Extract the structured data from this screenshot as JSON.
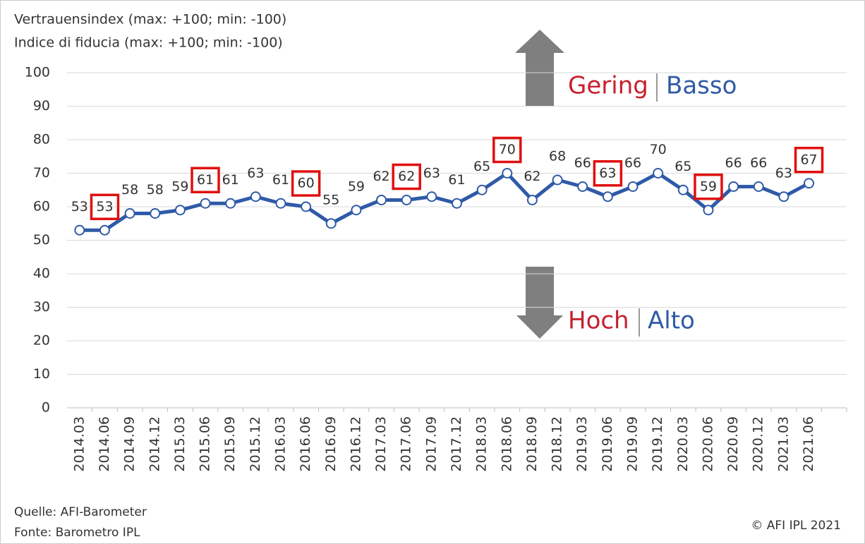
{
  "chart_data": {
    "type": "line",
    "title": "Vertrauensindex (max: +100; min: -100)",
    "subtitle": "Indice di fiducia (max: +100; min: -100)",
    "categories": [
      "2014.03",
      "2014.06",
      "2014.09",
      "2014.12",
      "2015.03",
      "2015.06",
      "2015.09",
      "2015.12",
      "2016.03",
      "2016.06",
      "2016.09",
      "2016.12",
      "2017.03",
      "2017.06",
      "2017.09",
      "2017.12",
      "2018.03",
      "2018.06",
      "2018.09",
      "2018.12",
      "2019.03",
      "2019.06",
      "2019.09",
      "2019.12",
      "2020.03",
      "2020.06",
      "2020.09",
      "2020.12",
      "2021.03",
      "2021.06",
      null
    ],
    "series": [
      {
        "name": null,
        "color": "#2f5aa8",
        "values": [
          53,
          53,
          58,
          58,
          59,
          61,
          61,
          63,
          61,
          60,
          55,
          59,
          62,
          62,
          63,
          61,
          65,
          70,
          62,
          68,
          66,
          63,
          66,
          70,
          65,
          59,
          66,
          66,
          63,
          67,
          null
        ]
      }
    ],
    "highlighted_indices": [
      1,
      5,
      9,
      13,
      17,
      21,
      25,
      29
    ],
    "highlight_color": "#e01010",
    "ylim": [
      0,
      100
    ],
    "yticks": [
      0,
      10,
      20,
      30,
      40,
      50,
      60,
      70,
      80,
      90,
      100
    ],
    "grid": true,
    "annotations": {
      "up_red": "Gering",
      "up_blue": "Basso",
      "down_red": "Hoch",
      "down_blue": "Alto"
    },
    "source": [
      "Quelle: AFI-Barometer",
      "Fonte: Barometro IPL"
    ],
    "copyright": "© AFI IPL 2021"
  }
}
